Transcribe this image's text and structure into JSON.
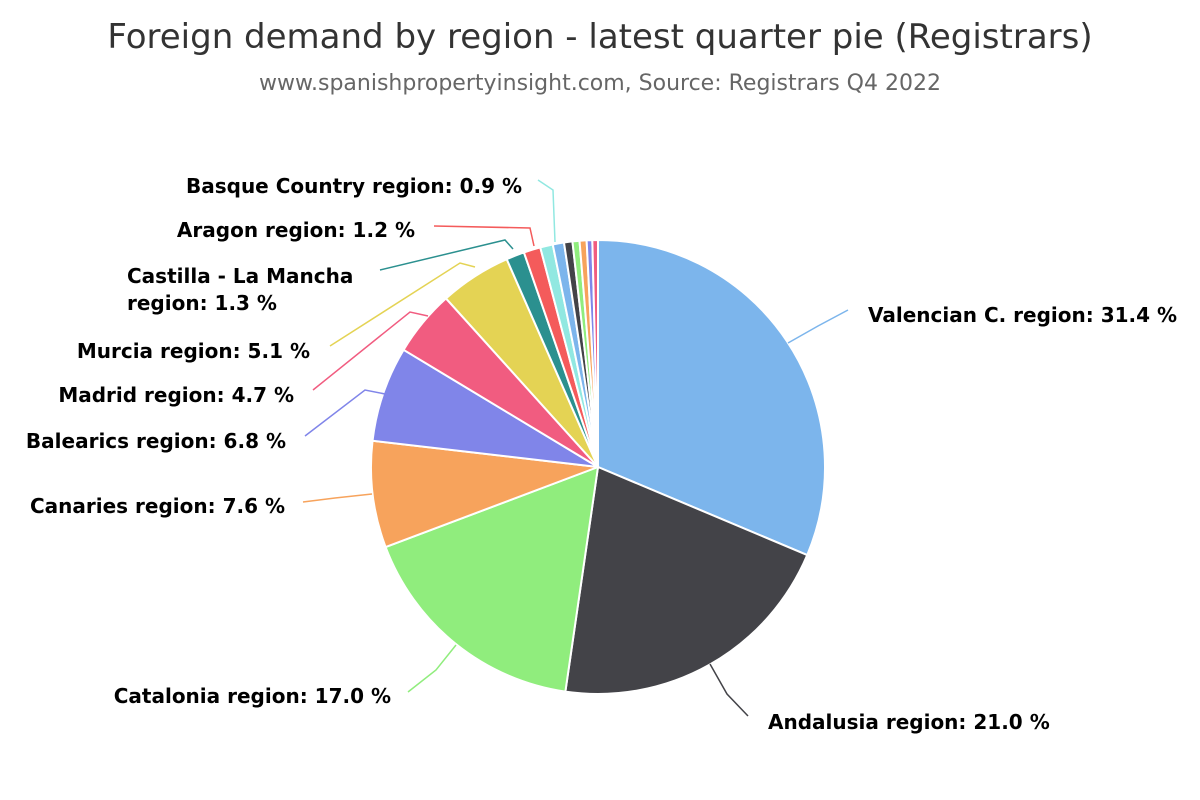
{
  "chart_data": {
    "type": "pie",
    "title": "Foreign demand by region - latest quarter pie (Registrars)",
    "subtitle": "www.spanishpropertyinsight.com, Source: Registrars Q4 2022",
    "unit": "%",
    "slices": [
      {
        "label": "Valencian C. region",
        "value": 31.4,
        "label_text": "Valencian C. region: 31.4 %",
        "color": "#7cb5ec"
      },
      {
        "label": "Andalusia region",
        "value": 21.0,
        "label_text": "Andalusia region: 21.0 %",
        "color": "#434348"
      },
      {
        "label": "Catalonia region",
        "value": 17.0,
        "label_text": "Catalonia region: 17.0 %",
        "color": "#90ed7d"
      },
      {
        "label": "Canaries region",
        "value": 7.6,
        "label_text": "Canaries region: 7.6 %",
        "color": "#f7a35c"
      },
      {
        "label": "Balearics region",
        "value": 6.8,
        "label_text": "Balearics region: 6.8 %",
        "color": "#8085e9"
      },
      {
        "label": "Madrid region",
        "value": 4.7,
        "label_text": "Madrid region: 4.7 %",
        "color": "#f15c80"
      },
      {
        "label": "Murcia region",
        "value": 5.1,
        "label_text": "Murcia region: 5.1 %",
        "color": "#e4d354"
      },
      {
        "label": "Castilla - La Mancha region",
        "value": 1.3,
        "label_lines": [
          "Castilla - La Mancha",
          "region: 1.3 %"
        ],
        "color": "#2b908f"
      },
      {
        "label": "Aragon region",
        "value": 1.2,
        "label_text": "Aragon region: 1.2 %",
        "color": "#f45b5b"
      },
      {
        "label": "Basque Country region",
        "value": 0.9,
        "label_text": "Basque Country region: 0.9 %",
        "color": "#91e8e1"
      },
      {
        "label": "",
        "value": 0.8,
        "color": "#7cb5ec"
      },
      {
        "label": "",
        "value": 0.6,
        "color": "#434348"
      },
      {
        "label": "",
        "value": 0.5,
        "color": "#90ed7d"
      },
      {
        "label": "",
        "value": 0.5,
        "color": "#f7a35c"
      },
      {
        "label": "",
        "value": 0.4,
        "color": "#8085e9"
      },
      {
        "label": "",
        "value": 0.4,
        "color": "#f15c80"
      }
    ]
  }
}
